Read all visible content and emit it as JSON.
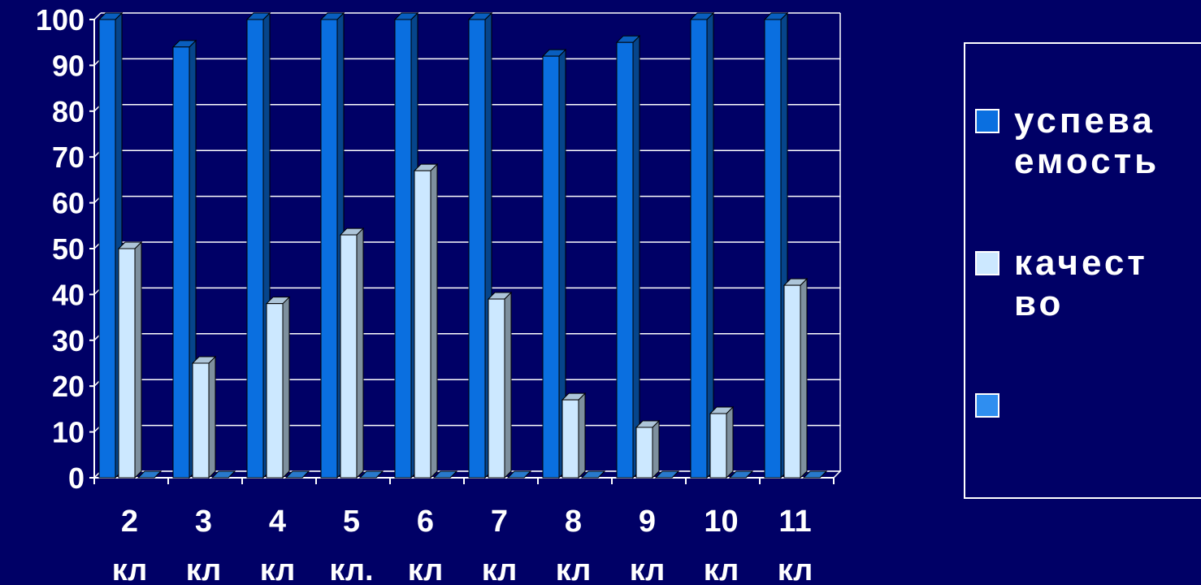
{
  "chart_data": {
    "type": "bar",
    "categories": [
      {
        "number": "2",
        "unit": "кл"
      },
      {
        "number": "3",
        "unit": "кл"
      },
      {
        "number": "4",
        "unit": "кл"
      },
      {
        "number": "5",
        "unit": "кл."
      },
      {
        "number": "6",
        "unit": "кл"
      },
      {
        "number": "7",
        "unit": "кл"
      },
      {
        "number": "8",
        "unit": "кл"
      },
      {
        "number": "9",
        "unit": "кл"
      },
      {
        "number": "10",
        "unit": "кл"
      },
      {
        "number": "11",
        "unit": "кл"
      }
    ],
    "series": [
      {
        "name": "успеваемость",
        "color": "#0a6fe0",
        "values": [
          100,
          94,
          100,
          100,
          100,
          100,
          92,
          95,
          100,
          100
        ]
      },
      {
        "name": "качество",
        "color": "#cce8ff",
        "values": [
          50,
          25,
          38,
          53,
          67,
          39,
          17,
          11,
          14,
          42
        ]
      },
      {
        "name": "",
        "color": "#2f8ef0",
        "values": [
          0,
          0,
          0,
          0,
          0,
          0,
          0,
          0,
          0,
          0
        ]
      }
    ],
    "yticks": [
      0,
      10,
      20,
      30,
      40,
      50,
      60,
      70,
      80,
      90,
      100
    ],
    "ylim": [
      0,
      100
    ],
    "grid": true,
    "legend_position": "right"
  },
  "legend": {
    "items": [
      {
        "text": "успева емость",
        "color": "#0a6fe0"
      },
      {
        "text": "качест во",
        "color": "#cce8ff"
      },
      {
        "text": "",
        "color": "#2f8ef0"
      }
    ]
  }
}
